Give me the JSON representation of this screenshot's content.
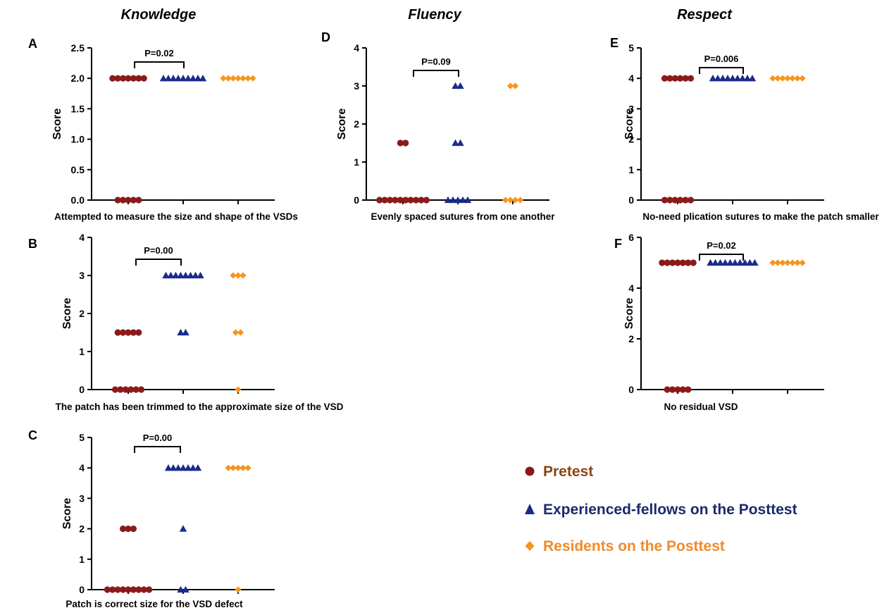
{
  "headers": {
    "knowledge": "Knowledge",
    "fluency": "Fluency",
    "respect": "Respect"
  },
  "legend": {
    "items": [
      {
        "label": "Pretest",
        "color": "#8b1a1a",
        "text_color": "#8b4513",
        "marker": "circle"
      },
      {
        "label": "Experienced-fellows on the Posttest",
        "color": "#1a2a8c",
        "text_color": "#1a2a6c",
        "marker": "triangle"
      },
      {
        "label": "Residents on the Posttest",
        "color": "#f7941d",
        "text_color": "#f08a2c",
        "marker": "diamond"
      }
    ]
  },
  "chart_data": [
    {
      "id": "A",
      "type": "scatter",
      "letter": "A",
      "ylabel": "Score",
      "ylim": [
        0,
        2.5
      ],
      "yticks": [
        "0.0",
        "0.5",
        "1.0",
        "1.5",
        "2.0",
        "2.5"
      ],
      "caption": "Attempted to measure the size and shape of the VSDs",
      "pvalue": "P=0.02",
      "series": [
        {
          "group": "pretest",
          "points": [
            {
              "y": 2.0,
              "count": 7
            },
            {
              "y": 0.0,
              "count": 5
            }
          ]
        },
        {
          "group": "fellows",
          "points": [
            {
              "y": 2.0,
              "count": 9
            }
          ]
        },
        {
          "group": "residents",
          "points": [
            {
              "y": 2.0,
              "count": 7
            }
          ]
        }
      ]
    },
    {
      "id": "B",
      "type": "scatter",
      "letter": "B",
      "ylabel": "Score",
      "ylim": [
        0,
        4
      ],
      "yticks": [
        "0",
        "1",
        "2",
        "3",
        "4"
      ],
      "caption": "The patch has been trimmed to the approximate size of the VSD",
      "pvalue": "P=0.00",
      "series": [
        {
          "group": "pretest",
          "points": [
            {
              "y": 1.5,
              "count": 5
            },
            {
              "y": 0.0,
              "count": 6
            }
          ]
        },
        {
          "group": "fellows",
          "points": [
            {
              "y": 3.0,
              "count": 8
            },
            {
              "y": 1.5,
              "count": 2
            }
          ]
        },
        {
          "group": "residents",
          "points": [
            {
              "y": 3.0,
              "count": 3
            },
            {
              "y": 1.5,
              "count": 2
            },
            {
              "y": 0.0,
              "count": 1
            }
          ]
        }
      ]
    },
    {
      "id": "C",
      "type": "scatter",
      "letter": "C",
      "ylabel": "Score",
      "ylim": [
        0,
        5
      ],
      "yticks": [
        "0",
        "1",
        "2",
        "3",
        "4",
        "5"
      ],
      "caption": "Patch is correct size for the VSD defect",
      "pvalue": "P=0.00",
      "series": [
        {
          "group": "pretest",
          "points": [
            {
              "y": 2.0,
              "count": 3
            },
            {
              "y": 0.0,
              "count": 9
            }
          ]
        },
        {
          "group": "fellows",
          "points": [
            {
              "y": 4.0,
              "count": 7
            },
            {
              "y": 2.0,
              "count": 1
            },
            {
              "y": 0.0,
              "count": 2
            }
          ]
        },
        {
          "group": "residents",
          "points": [
            {
              "y": 4.0,
              "count": 5
            },
            {
              "y": 0.0,
              "count": 1
            }
          ]
        }
      ]
    },
    {
      "id": "D",
      "type": "scatter",
      "letter": "D",
      "ylabel": "Score",
      "ylim": [
        0,
        4
      ],
      "yticks": [
        "0",
        "1",
        "2",
        "3",
        "4"
      ],
      "caption": "Evenly spaced sutures from one another",
      "pvalue": "P=0.09",
      "series": [
        {
          "group": "pretest",
          "points": [
            {
              "y": 1.5,
              "count": 2
            },
            {
              "y": 0.0,
              "count": 10
            }
          ]
        },
        {
          "group": "fellows",
          "points": [
            {
              "y": 3.0,
              "count": 2
            },
            {
              "y": 1.5,
              "count": 2
            },
            {
              "y": 0.0,
              "count": 5
            }
          ]
        },
        {
          "group": "residents",
          "points": [
            {
              "y": 3.0,
              "count": 2
            },
            {
              "y": 0.0,
              "count": 4
            }
          ]
        }
      ]
    },
    {
      "id": "E",
      "type": "scatter",
      "letter": "E",
      "ylabel": "Score",
      "ylim": [
        0,
        5
      ],
      "yticks": [
        "0",
        "1",
        "2",
        "3",
        "4",
        "5"
      ],
      "caption": "No-need plication sutures to make the patch smaller",
      "pvalue": "P=0.006",
      "series": [
        {
          "group": "pretest",
          "points": [
            {
              "y": 4.0,
              "count": 6
            },
            {
              "y": 0.0,
              "count": 6
            }
          ]
        },
        {
          "group": "fellows",
          "points": [
            {
              "y": 4.0,
              "count": 9
            }
          ]
        },
        {
          "group": "residents",
          "points": [
            {
              "y": 4.0,
              "count": 7
            }
          ]
        }
      ]
    },
    {
      "id": "F",
      "type": "scatter",
      "letter": "F",
      "ylabel": "Score",
      "ylim": [
        0,
        6
      ],
      "yticks": [
        "0",
        "2",
        "4",
        "6"
      ],
      "caption": "No residual VSD",
      "pvalue": "P=0.02",
      "series": [
        {
          "group": "pretest",
          "points": [
            {
              "y": 5.0,
              "count": 7
            },
            {
              "y": 0.0,
              "count": 5
            }
          ]
        },
        {
          "group": "fellows",
          "points": [
            {
              "y": 5.0,
              "count": 10
            }
          ]
        },
        {
          "group": "residents",
          "points": [
            {
              "y": 5.0,
              "count": 7
            }
          ]
        }
      ]
    }
  ]
}
